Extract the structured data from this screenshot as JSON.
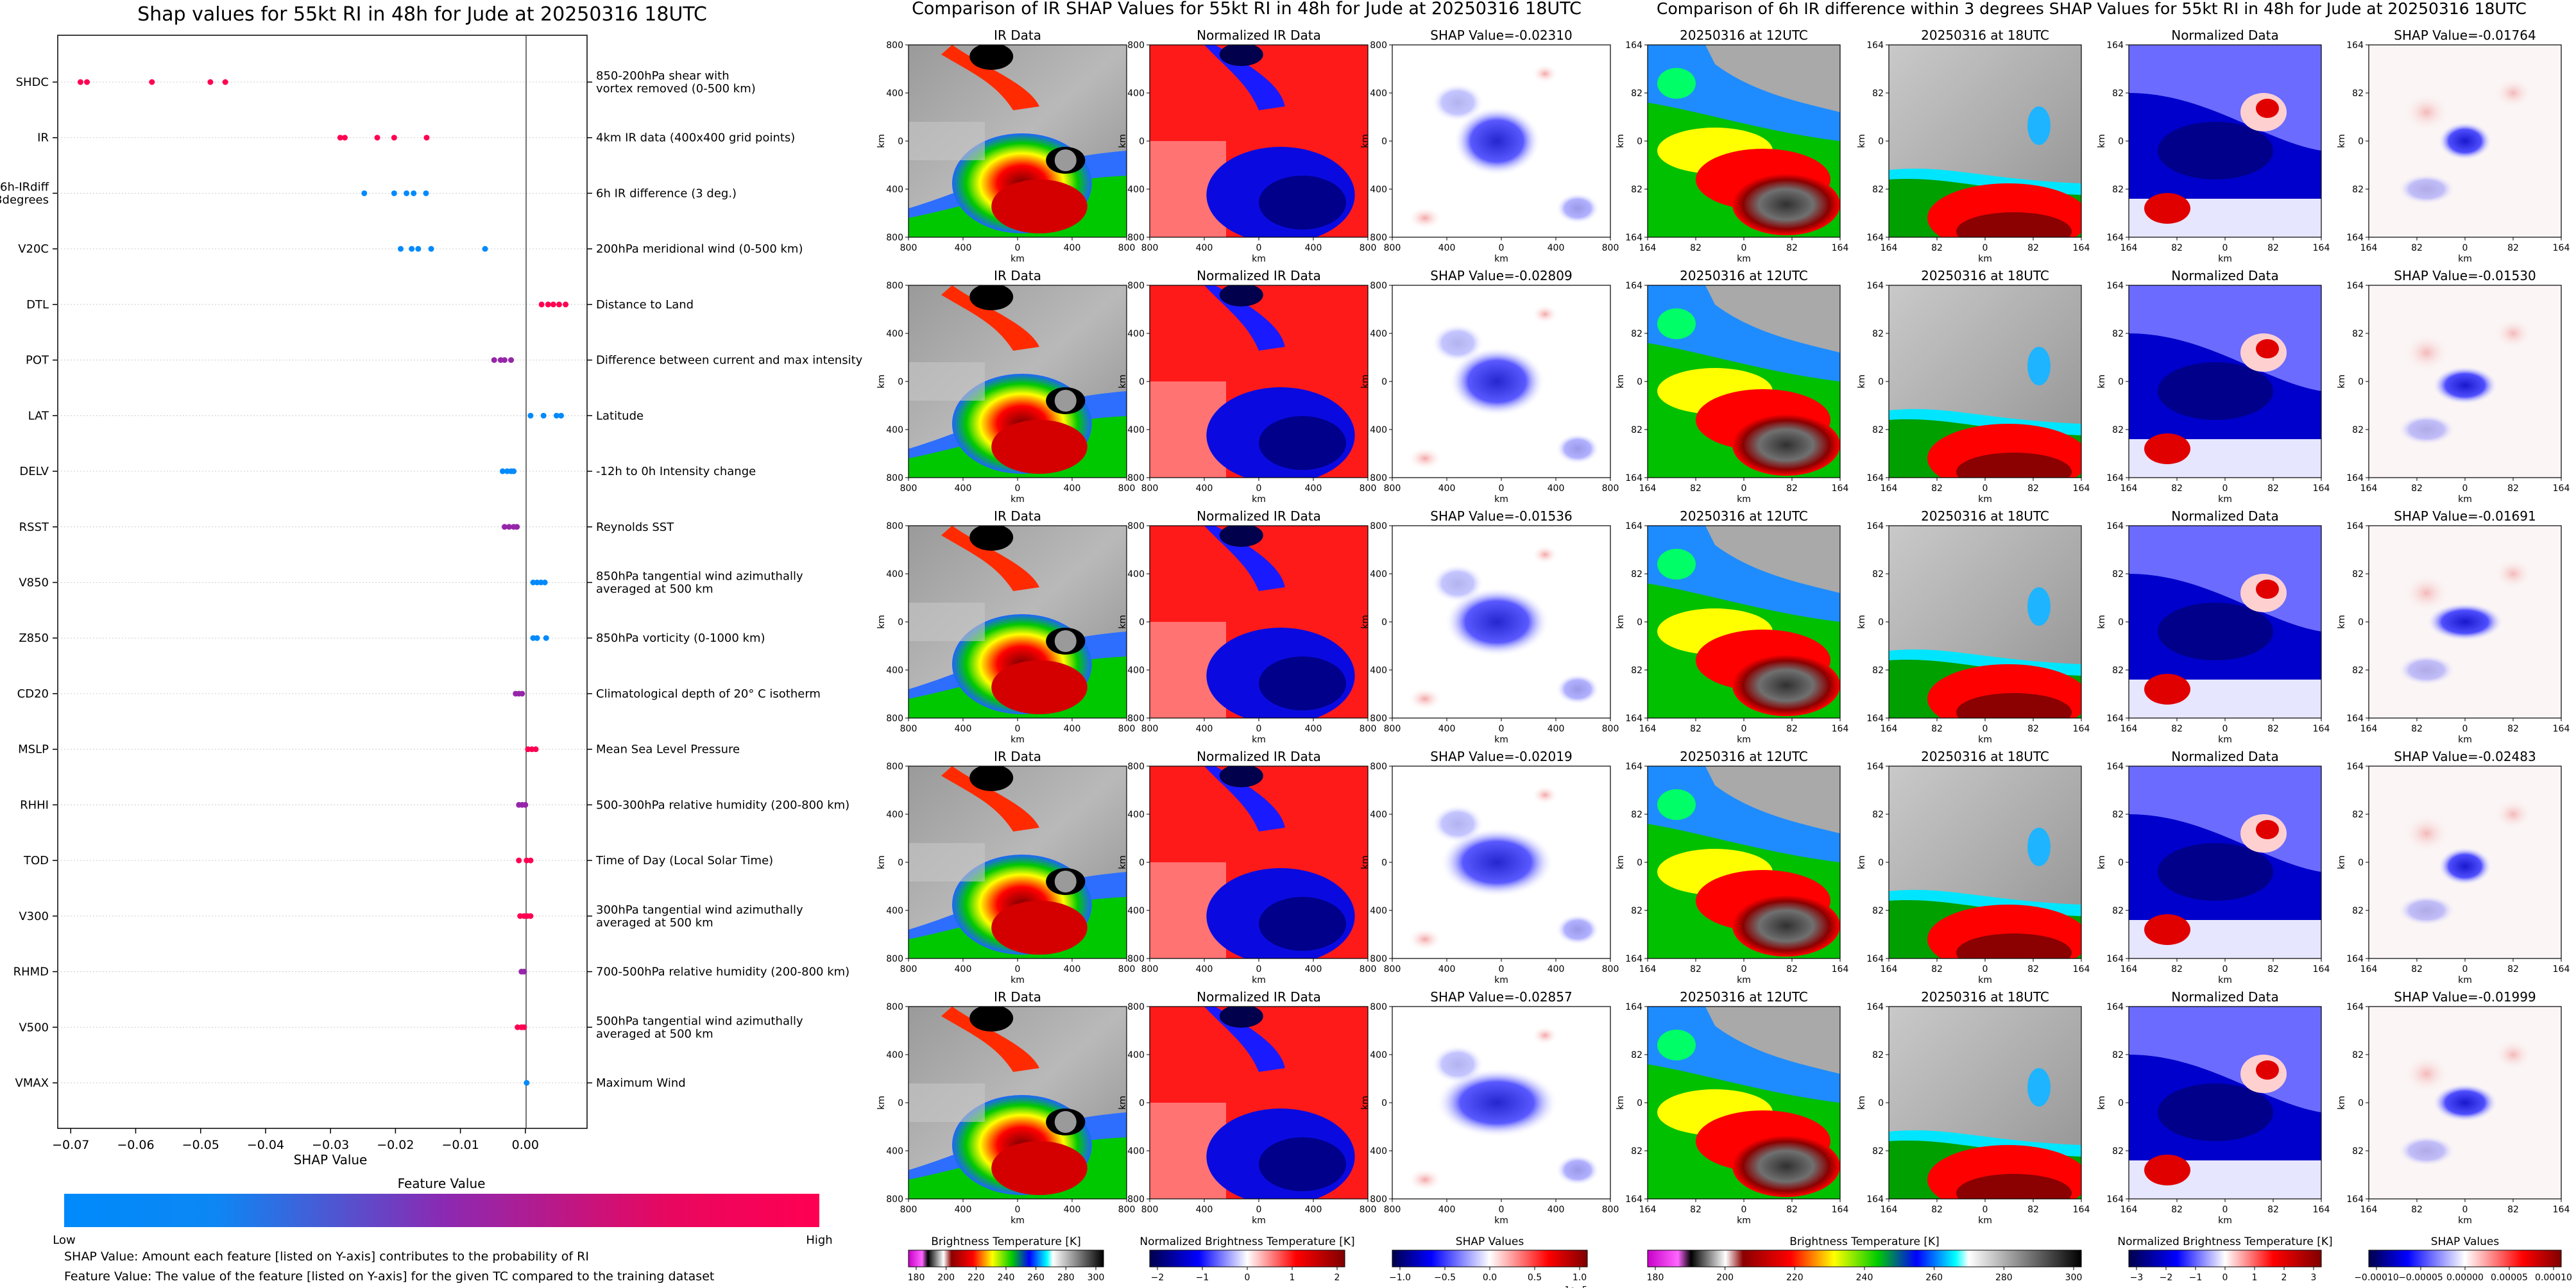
{
  "panel_a": {
    "title": "Shap values for 55kt RI in 48h for Jude at 20250316 18UTC",
    "xlabel": "SHAP Value",
    "colorbar_title": "Feature Value",
    "colorbar_low": "Low",
    "colorbar_high": "High",
    "note1": "SHAP Value: Amount each feature [listed on Y-axis] contributes to the probability of RI",
    "note2": "Feature Value: The value of the feature [listed on Y-axis] for the given TC compared to the training dataset"
  },
  "panel_b": {
    "title": "Comparison of IR SHAP Values for 55kt RI in 48h for Jude at 20250316 18UTC"
  },
  "panel_c": {
    "title": "Comparison of 6h IR difference within 3 degrees SHAP Values for 55kt RI in 48h for Jude at 20250316 18UTC"
  },
  "chart_data": [
    {
      "type": "scatter",
      "title": "Shap values for 55kt RI in 48h for Jude at 20250316 18UTC",
      "xlabel": "SHAP Value",
      "xlim": [
        -0.072,
        0.0095
      ],
      "xticks": [
        -0.07,
        -0.06,
        -0.05,
        -0.04,
        -0.03,
        -0.02,
        -0.01,
        0.0
      ],
      "xtick_labels": [
        "−0.07",
        "−0.06",
        "−0.05",
        "−0.04",
        "−0.03",
        "−0.02",
        "−0.01",
        "0.00"
      ],
      "color_scale": {
        "low": "#008afb",
        "mid": "#8a2ab3",
        "high": "#ff0052"
      },
      "features": [
        {
          "name": "SHDC",
          "desc": [
            "850-200hPa shear with",
            "vortex removed (0-500 km)"
          ],
          "points": [
            [
              -0.0685,
              1
            ],
            [
              -0.0675,
              1
            ],
            [
              -0.0575,
              1
            ],
            [
              -0.0485,
              1
            ],
            [
              -0.0462,
              1
            ]
          ]
        },
        {
          "name": "IR",
          "desc": [
            "4km IR data (400x400 grid points)"
          ],
          "points": [
            [
              -0.0285,
              1
            ],
            [
              -0.0278,
              1
            ],
            [
              -0.0228,
              1
            ],
            [
              -0.0202,
              1
            ],
            [
              -0.0152,
              1
            ]
          ]
        },
        {
          "name": "6h-IRdiff 3degrees",
          "desc": [
            "6h IR difference (3 deg.)"
          ],
          "points": [
            [
              -0.0248,
              0
            ],
            [
              -0.0202,
              0
            ],
            [
              -0.0183,
              0
            ],
            [
              -0.0172,
              0
            ],
            [
              -0.0153,
              0
            ]
          ]
        },
        {
          "name": "V20C",
          "desc": [
            "200hPa meridional wind (0-500 km)"
          ],
          "points": [
            [
              -0.0192,
              0
            ],
            [
              -0.0175,
              0
            ],
            [
              -0.0165,
              0
            ],
            [
              -0.0145,
              0
            ],
            [
              -0.0062,
              0
            ]
          ]
        },
        {
          "name": "DTL",
          "desc": [
            "Distance to Land"
          ],
          "points": [
            [
              0.0025,
              1
            ],
            [
              0.0035,
              1
            ],
            [
              0.0043,
              1
            ],
            [
              0.0052,
              1
            ],
            [
              0.0062,
              1
            ]
          ]
        },
        {
          "name": "POT",
          "desc": [
            "Difference between current and max intensity"
          ],
          "points": [
            [
              -0.0048,
              0.55
            ],
            [
              -0.0038,
              0.55
            ],
            [
              -0.0032,
              0.55
            ],
            [
              -0.0022,
              0.55
            ]
          ]
        },
        {
          "name": "LAT",
          "desc": [
            "Latitude"
          ],
          "points": [
            [
              0.0008,
              0
            ],
            [
              0.0028,
              0
            ],
            [
              0.0048,
              0
            ],
            [
              0.0055,
              0
            ]
          ]
        },
        {
          "name": "DELV",
          "desc": [
            "-12h to 0h Intensity change"
          ],
          "points": [
            [
              -0.0035,
              0
            ],
            [
              -0.0028,
              0
            ],
            [
              -0.0022,
              0
            ],
            [
              -0.0018,
              0
            ]
          ]
        },
        {
          "name": "RSST",
          "desc": [
            "Reynolds SST"
          ],
          "points": [
            [
              -0.0032,
              0.55
            ],
            [
              -0.0025,
              0.55
            ],
            [
              -0.0018,
              0.55
            ],
            [
              -0.0013,
              0.55
            ]
          ]
        },
        {
          "name": "V850",
          "desc": [
            "850hPa tangential wind azimuthally",
            "averaged at 500 km"
          ],
          "points": [
            [
              0.0012,
              0
            ],
            [
              0.0018,
              0
            ],
            [
              0.0024,
              0
            ],
            [
              0.003,
              0
            ]
          ]
        },
        {
          "name": "Z850",
          "desc": [
            "850hPa vorticity (0-1000 km)"
          ],
          "points": [
            [
              0.0012,
              0
            ],
            [
              0.0018,
              0
            ],
            [
              0.0032,
              0
            ]
          ]
        },
        {
          "name": "CD20",
          "desc": [
            "Climatological depth of 20° C isotherm"
          ],
          "points": [
            [
              -0.0015,
              0.55
            ],
            [
              -0.001,
              0.55
            ],
            [
              -0.0005,
              0.55
            ]
          ]
        },
        {
          "name": "MSLP",
          "desc": [
            "Mean Sea Level Pressure"
          ],
          "points": [
            [
              0.0004,
              1
            ],
            [
              0.001,
              1
            ],
            [
              0.0016,
              1
            ]
          ]
        },
        {
          "name": "RHHI",
          "desc": [
            "500-300hPa relative humidity (200-800 km)"
          ],
          "points": [
            [
              -0.001,
              0.55
            ],
            [
              -0.0005,
              0.55
            ],
            [
              0.0,
              0.55
            ]
          ]
        },
        {
          "name": "TOD",
          "desc": [
            "Time of Day (Local Solar Time)"
          ],
          "points": [
            [
              -0.001,
              1
            ],
            [
              0.0002,
              1
            ],
            [
              0.0008,
              1
            ]
          ]
        },
        {
          "name": "V300",
          "desc": [
            "300hPa tangential wind azimuthally",
            "averaged at 500 km"
          ],
          "points": [
            [
              -0.0008,
              1
            ],
            [
              -0.0002,
              1
            ],
            [
              0.0003,
              1
            ],
            [
              0.0008,
              1
            ]
          ]
        },
        {
          "name": "RHMD",
          "desc": [
            "700-500hPa relative humidity (200-800 km)"
          ],
          "points": [
            [
              -0.0006,
              0.55
            ],
            [
              -0.0002,
              0.55
            ]
          ]
        },
        {
          "name": "V500",
          "desc": [
            "500hPa tangential wind azimuthally",
            "averaged at 500 km"
          ],
          "points": [
            [
              -0.0012,
              1
            ],
            [
              -0.0006,
              1
            ],
            [
              -0.0002,
              1
            ]
          ]
        },
        {
          "name": "VMAX",
          "desc": [
            "Maximum Wind"
          ],
          "points": [
            [
              0.0002,
              0
            ]
          ]
        }
      ]
    },
    {
      "type": "heatmap",
      "title": "Comparison of IR SHAP Values for 55kt RI in 48h for Jude at 20250316 18UTC",
      "column_titles": [
        "IR Data",
        "Normalized IR Data",
        "SHAP Value"
      ],
      "rows": [
        {
          "shap_value": "SHAP Value=-0.02310"
        },
        {
          "shap_value": "SHAP Value=-0.02809"
        },
        {
          "shap_value": "SHAP Value=-0.01536"
        },
        {
          "shap_value": "SHAP Value=-0.02019"
        },
        {
          "shap_value": "SHAP Value=-0.02857"
        }
      ],
      "axis_label": "km",
      "ticks": [
        "800",
        "400",
        "0",
        "400",
        "800"
      ],
      "colorbars": [
        {
          "label": "Brightness Temperature [K]",
          "ticks": [
            "180",
            "200",
            "220",
            "240",
            "260",
            "280",
            "300"
          ]
        },
        {
          "label": "Normalized Brightness Temperature [K]",
          "ticks": [
            "−2",
            "−1",
            "0",
            "1",
            "2"
          ]
        },
        {
          "label": "SHAP Values",
          "ticks": [
            "−1.0",
            "−0.5",
            "0.0",
            "0.5",
            "1.0"
          ],
          "offset": "1e−5"
        }
      ]
    },
    {
      "type": "heatmap",
      "title": "Comparison of 6h IR difference within 3 degrees SHAP Values for 55kt RI in 48h for Jude at 20250316 18UTC",
      "column_titles": [
        "20250316 at 12UTC",
        "20250316 at 18UTC",
        "Normalized Data",
        "SHAP Value"
      ],
      "rows": [
        {
          "shap_value": "SHAP Value=-0.01764"
        },
        {
          "shap_value": "SHAP Value=-0.01530"
        },
        {
          "shap_value": "SHAP Value=-0.01691"
        },
        {
          "shap_value": "SHAP Value=-0.02483"
        },
        {
          "shap_value": "SHAP Value=-0.01999"
        }
      ],
      "axis_label": "km",
      "ticks": [
        "164",
        "82",
        "0",
        "82",
        "164"
      ],
      "colorbars": [
        {
          "label": "Brightness Temperature [K]",
          "ticks": [
            "180",
            "200",
            "220",
            "240",
            "260",
            "280",
            "300"
          ]
        },
        {
          "label": "Normalized Brightness Temperature [K]",
          "ticks": [
            "−3",
            "−2",
            "−1",
            "0",
            "1",
            "2",
            "3"
          ]
        },
        {
          "label": "SHAP Values",
          "ticks": [
            "−0.00010",
            "−0.00005",
            "0.00000",
            "0.00005",
            "0.00010"
          ]
        }
      ]
    }
  ]
}
